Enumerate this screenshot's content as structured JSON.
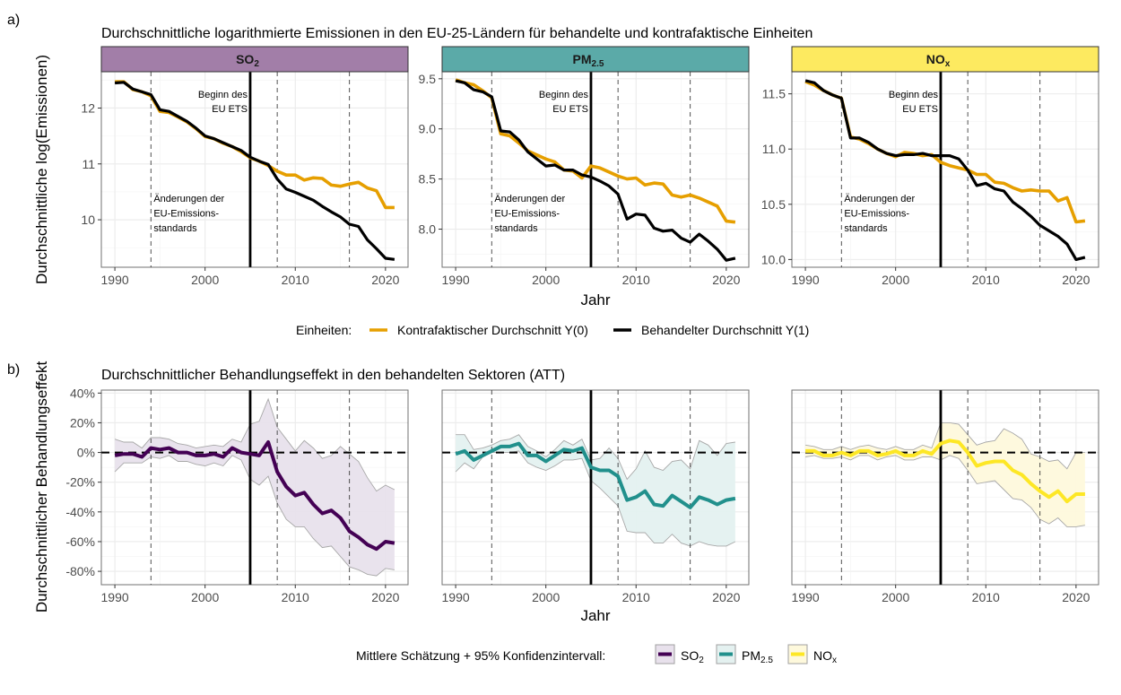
{
  "figure": {
    "label_a": "a)",
    "label_b": "b)",
    "title_a": "Durchschnittliche logarithmierte Emissionen in den EU-25-Ländern für behandelte und kontrafaktische Einheiten",
    "title_b": "Durchschnittlicher Behandlungseffekt in den behandelten Sektoren (ATT)",
    "ylabel_a": "Durchschnittliche log(Emissionen)",
    "ylabel_b": "Durchschnittlicher Behandlungseffekt",
    "xlabel": "Jahr",
    "annotation_ets": [
      "Beginn des",
      "EU ETS"
    ],
    "annotation_standards": [
      "Änderungen der",
      "EU-Emissions-",
      "standards"
    ],
    "legend_a": {
      "title": "Einheiten:",
      "items": [
        {
          "label": "Kontrafaktischer Durchschnitt Y(0)",
          "color": "#E69F00"
        },
        {
          "label": "Behandelter Durchschnitt Y(1)",
          "color": "#000000"
        }
      ]
    },
    "legend_b": {
      "title": "Mittlere Schätzung + 95% Konfidenzintervall:",
      "items": [
        {
          "label": "SO",
          "sub": "2",
          "color": "#440154",
          "fill": "#E8E1EC"
        },
        {
          "label": "PM",
          "sub": "2.5",
          "color": "#21908C",
          "fill": "#E4F1F0"
        },
        {
          "label": "NO",
          "sub": "x",
          "color": "#FDE725",
          "fill": "#FEF9DC"
        }
      ]
    }
  },
  "chart_data": [
    {
      "type": "line",
      "panel": "a",
      "strip": {
        "label": "SO",
        "sub": "2",
        "color": "#A27EA8"
      },
      "x": [
        1990,
        1991,
        1992,
        1993,
        1994,
        1995,
        1996,
        1997,
        1998,
        1999,
        2000,
        2001,
        2002,
        2003,
        2004,
        2005,
        2006,
        2007,
        2008,
        2009,
        2010,
        2011,
        2012,
        2013,
        2014,
        2015,
        2016,
        2017,
        2018,
        2019,
        2020,
        2021
      ],
      "xticks": [
        1990,
        2000,
        2010,
        2020
      ],
      "yticks": [
        10,
        11,
        12
      ],
      "ylim": [
        9.15,
        12.65
      ],
      "xlim": [
        1988.5,
        2022.5
      ],
      "vlines_dashed": [
        1994,
        2008,
        2016
      ],
      "vline_solid": 2005,
      "series": [
        {
          "name": "Kontrafaktischer Durchschnitt Y(0)",
          "color": "#E69F00",
          "values": [
            12.47,
            12.47,
            12.33,
            12.29,
            12.22,
            11.94,
            11.92,
            11.84,
            11.75,
            11.63,
            11.49,
            11.45,
            11.37,
            11.31,
            11.22,
            11.11,
            11.05,
            10.97,
            10.87,
            10.8,
            10.8,
            10.71,
            10.75,
            10.74,
            10.62,
            10.6,
            10.64,
            10.67,
            10.57,
            10.52,
            10.22,
            10.22
          ]
        },
        {
          "name": "Behandelter Durchschnitt Y(1)",
          "color": "#000000",
          "values": [
            12.45,
            12.46,
            12.34,
            12.29,
            12.24,
            11.97,
            11.94,
            11.85,
            11.76,
            11.64,
            11.5,
            11.45,
            11.38,
            11.31,
            11.24,
            11.12,
            11.05,
            10.99,
            10.73,
            10.55,
            10.49,
            10.42,
            10.35,
            10.24,
            10.14,
            10.05,
            9.92,
            9.88,
            9.64,
            9.48,
            9.31,
            9.29
          ]
        }
      ]
    },
    {
      "type": "line",
      "panel": "a",
      "strip": {
        "label": "PM",
        "sub": "2.5",
        "color": "#5BAAA8"
      },
      "x": [
        1990,
        1991,
        1992,
        1993,
        1994,
        1995,
        1996,
        1997,
        1998,
        1999,
        2000,
        2001,
        2002,
        2003,
        2004,
        2005,
        2006,
        2007,
        2008,
        2009,
        2010,
        2011,
        2012,
        2013,
        2014,
        2015,
        2016,
        2017,
        2018,
        2019,
        2020,
        2021
      ],
      "xticks": [
        1990,
        2000,
        2010,
        2020
      ],
      "yticks": [
        8.0,
        8.5,
        9.0,
        9.5
      ],
      "ylim": [
        7.62,
        9.57
      ],
      "xlim": [
        1988.5,
        2022.5
      ],
      "vlines_dashed": [
        1994,
        2008,
        2016
      ],
      "vline_solid": 2005,
      "series": [
        {
          "name": "Kontrafaktischer Durchschnitt Y(0)",
          "color": "#E69F00",
          "values": [
            9.49,
            9.46,
            9.44,
            9.38,
            9.31,
            8.95,
            8.93,
            8.86,
            8.78,
            8.74,
            8.7,
            8.67,
            8.59,
            8.58,
            8.51,
            8.63,
            8.61,
            8.57,
            8.53,
            8.5,
            8.51,
            8.44,
            8.46,
            8.45,
            8.34,
            8.32,
            8.34,
            8.31,
            8.27,
            8.23,
            8.08,
            8.07
          ]
        },
        {
          "name": "Behandelter Durchschnitt Y(1)",
          "color": "#000000",
          "values": [
            9.48,
            9.46,
            9.39,
            9.37,
            9.32,
            8.98,
            8.97,
            8.89,
            8.77,
            8.7,
            8.63,
            8.64,
            8.59,
            8.59,
            8.54,
            8.52,
            8.48,
            8.43,
            8.35,
            8.1,
            8.15,
            8.14,
            8.01,
            7.98,
            7.99,
            7.91,
            7.87,
            7.95,
            7.88,
            7.8,
            7.69,
            7.71
          ]
        }
      ]
    },
    {
      "type": "line",
      "panel": "a",
      "strip": {
        "label": "NO",
        "sub": "x",
        "color": "#FDEA60"
      },
      "x": [
        1990,
        1991,
        1992,
        1993,
        1994,
        1995,
        1996,
        1997,
        1998,
        1999,
        2000,
        2001,
        2002,
        2003,
        2004,
        2005,
        2006,
        2007,
        2008,
        2009,
        2010,
        2011,
        2012,
        2013,
        2014,
        2015,
        2016,
        2017,
        2018,
        2019,
        2020,
        2021
      ],
      "xticks": [
        1990,
        2000,
        2010,
        2020
      ],
      "yticks": [
        10.0,
        10.5,
        11.0,
        11.5
      ],
      "ylim": [
        9.93,
        11.7
      ],
      "xlim": [
        1988.5,
        2022.5
      ],
      "vlines_dashed": [
        1994,
        2008,
        2016
      ],
      "vline_solid": 2005,
      "series": [
        {
          "name": "Kontrafaktischer Durchschnitt Y(0)",
          "color": "#E69F00",
          "values": [
            11.61,
            11.58,
            11.53,
            11.49,
            11.46,
            11.11,
            11.09,
            11.05,
            11.0,
            10.96,
            10.93,
            10.97,
            10.96,
            10.94,
            10.95,
            10.88,
            10.85,
            10.83,
            10.81,
            10.77,
            10.77,
            10.7,
            10.69,
            10.65,
            10.62,
            10.63,
            10.62,
            10.62,
            10.53,
            10.56,
            10.34,
            10.35
          ]
        },
        {
          "name": "Behandelter Durchschnitt Y(1)",
          "color": "#000000",
          "values": [
            11.62,
            11.6,
            11.53,
            11.49,
            11.46,
            11.1,
            11.1,
            11.06,
            11.0,
            10.96,
            10.94,
            10.95,
            10.95,
            10.96,
            10.94,
            10.94,
            10.94,
            10.91,
            10.81,
            10.67,
            10.69,
            10.64,
            10.62,
            10.52,
            10.46,
            10.39,
            10.31,
            10.26,
            10.21,
            10.14,
            10.0,
            10.02
          ]
        }
      ]
    },
    {
      "type": "area",
      "panel": "b",
      "name": "SO2",
      "color": "#440154",
      "fill": "#E8E1EC",
      "x": [
        1990,
        1991,
        1992,
        1993,
        1994,
        1995,
        1996,
        1997,
        1998,
        1999,
        2000,
        2001,
        2002,
        2003,
        2004,
        2005,
        2006,
        2007,
        2008,
        2009,
        2010,
        2011,
        2012,
        2013,
        2014,
        2015,
        2016,
        2017,
        2018,
        2019,
        2020,
        2021
      ],
      "xticks": [
        1990,
        2000,
        2010,
        2020
      ],
      "yticks": [
        -80,
        -60,
        -40,
        -20,
        0,
        20,
        40
      ],
      "ytick_labels": [
        "-80%",
        "-60%",
        "-40%",
        "-20%",
        "0%",
        "20%",
        "40%"
      ],
      "ylim": [
        -89,
        42
      ],
      "xlim": [
        1988.5,
        2022.5
      ],
      "vlines_dashed": [
        1994,
        2008,
        2016
      ],
      "vline_solid": 2005,
      "estimate": [
        -2,
        -1,
        -1,
        -3,
        3,
        2,
        3,
        0,
        0,
        -2,
        -2,
        -1,
        -3,
        3,
        0,
        -1,
        -2,
        7,
        -13,
        -23,
        -29,
        -27,
        -35,
        -41,
        -39,
        -44,
        -53,
        -57,
        -62,
        -65,
        -60,
        -61
      ],
      "upper": [
        9,
        7,
        7,
        3,
        10,
        10,
        9,
        6,
        5,
        3,
        4,
        5,
        4,
        9,
        7,
        19,
        21,
        36,
        17,
        9,
        1,
        8,
        3,
        -4,
        -2,
        4,
        -1,
        -6,
        -17,
        -26,
        -22,
        -25
      ],
      "lower": [
        -13,
        -7,
        -7,
        -7,
        -3,
        -4,
        -2,
        -6,
        -6,
        -8,
        -9,
        -7,
        -9,
        -2,
        -5,
        -18,
        -22,
        -16,
        -34,
        -45,
        -50,
        -50,
        -58,
        -64,
        -63,
        -70,
        -77,
        -79,
        -82,
        -83,
        -78,
        -79
      ]
    },
    {
      "type": "area",
      "panel": "b",
      "name": "PM2.5",
      "color": "#21908C",
      "fill": "#E4F1F0",
      "x": [
        1990,
        1991,
        1992,
        1993,
        1994,
        1995,
        1996,
        1997,
        1998,
        1999,
        2000,
        2001,
        2002,
        2003,
        2004,
        2005,
        2006,
        2007,
        2008,
        2009,
        2010,
        2011,
        2012,
        2013,
        2014,
        2015,
        2016,
        2017,
        2018,
        2019,
        2020,
        2021
      ],
      "xticks": [
        1990,
        2000,
        2010,
        2020
      ],
      "yticks": [
        -80,
        -60,
        -40,
        -20,
        0,
        20,
        40
      ],
      "ylim": [
        -89,
        42
      ],
      "xlim": [
        1988.5,
        2022.5
      ],
      "vlines_dashed": [
        1994,
        2008,
        2016
      ],
      "vline_solid": 2005,
      "estimate": [
        -1,
        1,
        -5,
        -2,
        1,
        4,
        4,
        6,
        -2,
        -2,
        -6,
        -2,
        2,
        1,
        3,
        -10,
        -12,
        -12,
        -16,
        -32,
        -30,
        -26,
        -35,
        -36,
        -29,
        -33,
        -37,
        -30,
        -32,
        -35,
        -32,
        -31
      ],
      "upper": [
        12,
        12,
        2,
        3,
        5,
        8,
        9,
        12,
        4,
        1,
        -3,
        2,
        8,
        5,
        9,
        -5,
        -4,
        3,
        -4,
        -18,
        -11,
        1,
        -10,
        -12,
        -6,
        -5,
        -11,
        8,
        5,
        -2,
        6,
        7
      ],
      "lower": [
        -13,
        -7,
        -11,
        -3,
        0,
        0,
        0,
        1,
        -7,
        -10,
        -12,
        -9,
        -5,
        -5,
        -4,
        -19,
        -24,
        -30,
        -36,
        -53,
        -54,
        -54,
        -61,
        -61,
        -55,
        -61,
        -63,
        -60,
        -62,
        -63,
        -63,
        -60
      ]
    },
    {
      "type": "area",
      "panel": "b",
      "name": "NOx",
      "color": "#FDE725",
      "fill": "#FEF9DC",
      "x": [
        1990,
        1991,
        1992,
        1993,
        1994,
        1995,
        1996,
        1997,
        1998,
        1999,
        2000,
        2001,
        2002,
        2003,
        2004,
        2005,
        2006,
        2007,
        2008,
        2009,
        2010,
        2011,
        2012,
        2013,
        2014,
        2015,
        2016,
        2017,
        2018,
        2019,
        2020,
        2021
      ],
      "xticks": [
        1990,
        2000,
        2010,
        2020
      ],
      "yticks": [
        -80,
        -60,
        -40,
        -20,
        0,
        20,
        40
      ],
      "ylim": [
        -89,
        42
      ],
      "xlim": [
        1988.5,
        2022.5
      ],
      "vlines_dashed": [
        1994,
        2008,
        2016
      ],
      "vline_solid": 2005,
      "estimate": [
        1,
        1,
        -2,
        -2,
        0,
        -2,
        1,
        1,
        -2,
        -1,
        1,
        -2,
        -2,
        1,
        -1,
        6,
        8,
        7,
        0,
        -9,
        -7,
        -6,
        -6,
        -12,
        -15,
        -21,
        -26,
        -30,
        -26,
        -33,
        -28,
        -28
      ],
      "upper": [
        5,
        4,
        2,
        2,
        4,
        2,
        4,
        5,
        3,
        2,
        4,
        2,
        2,
        5,
        3,
        20,
        20,
        19,
        12,
        5,
        7,
        8,
        16,
        13,
        9,
        -1,
        -3,
        -6,
        -5,
        -11,
        0,
        0
      ],
      "lower": [
        -3,
        -2,
        -4,
        -4,
        -3,
        -5,
        -2,
        -2,
        -5,
        -3,
        -2,
        -5,
        -5,
        -3,
        -3,
        -5,
        -2,
        -4,
        -12,
        -21,
        -20,
        -19,
        -25,
        -31,
        -32,
        -37,
        -45,
        -48,
        -44,
        -50,
        -50,
        -49
      ]
    }
  ]
}
